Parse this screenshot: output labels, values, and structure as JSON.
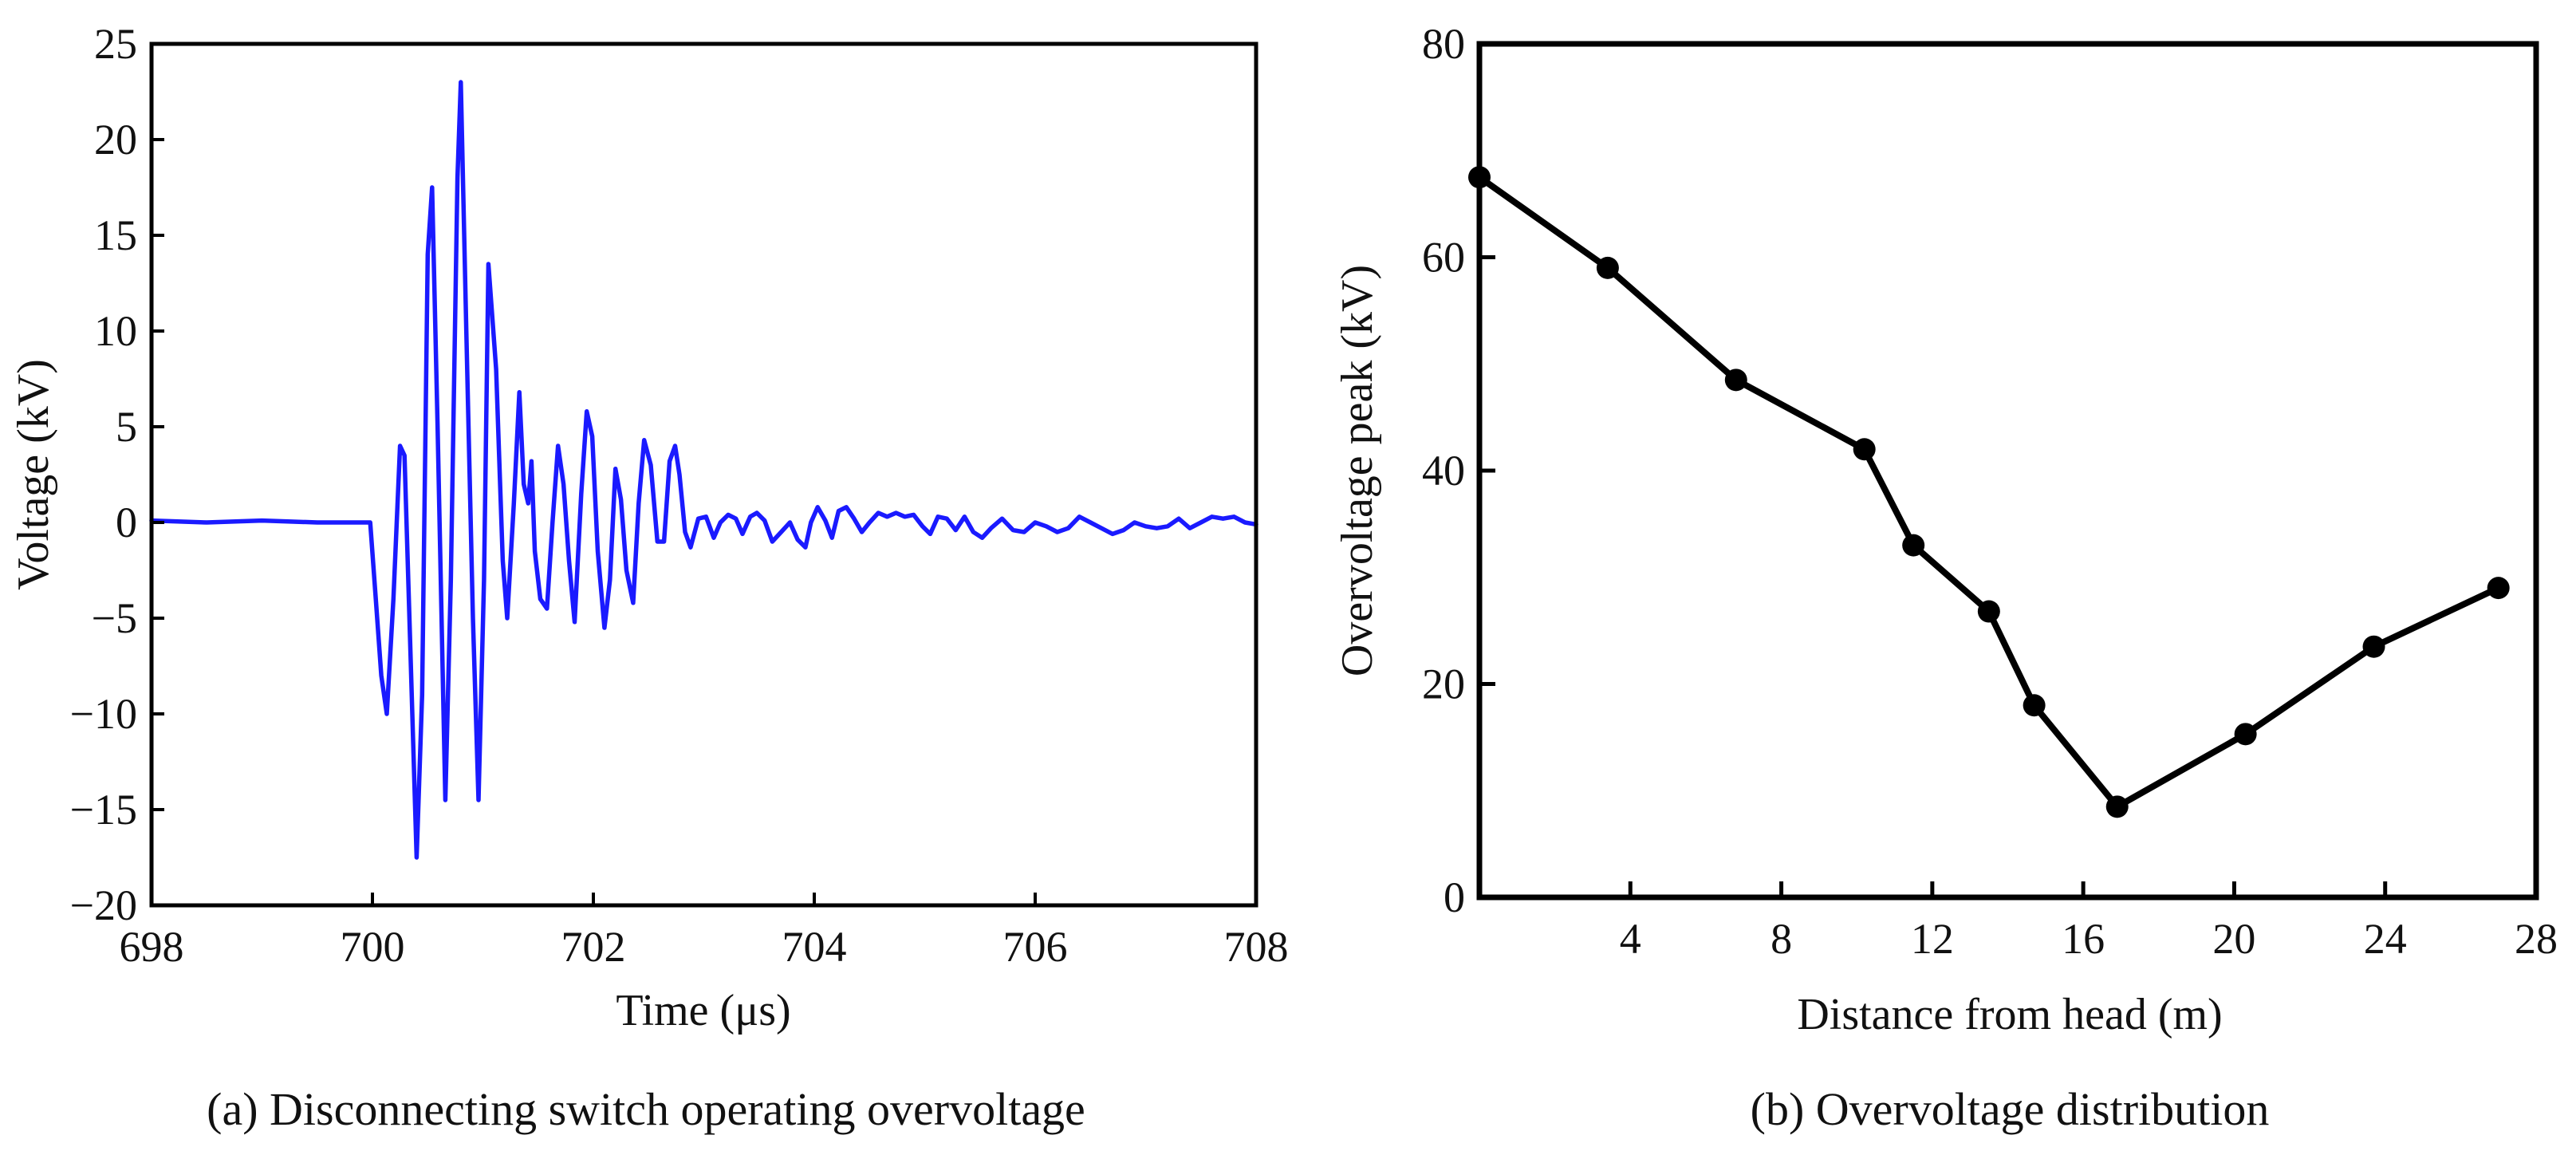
{
  "chart_data": [
    {
      "type": "line",
      "caption": "(a) Disconnecting switch operating overvoltage",
      "xlabel": "Time (μs)",
      "ylabel": "Voltage (kV)",
      "xlim": [
        698,
        708
      ],
      "ylim": [
        -20,
        25
      ],
      "x_ticks": [
        698,
        700,
        702,
        704,
        706,
        708
      ],
      "x_tick_labels": [
        "698",
        "700",
        "702",
        "704",
        "706",
        "708"
      ],
      "y_ticks": [
        -20,
        -15,
        -10,
        -5,
        0,
        5,
        10,
        15,
        20,
        25
      ],
      "y_tick_labels": [
        "−20",
        "−15",
        "−10",
        "−5",
        "0",
        "5",
        "10",
        "15",
        "20",
        "25"
      ],
      "grid": false,
      "series": [
        {
          "name": "Voltage",
          "color": "#1a1aff",
          "x": [
            698,
            698.5,
            699,
            699.5,
            699.98,
            700.03,
            700.08,
            700.13,
            700.19,
            700.25,
            700.29,
            700.34,
            700.4,
            700.45,
            700.5,
            700.54,
            700.59,
            700.66,
            700.71,
            700.77,
            700.8,
            700.85,
            700.91,
            700.96,
            701.01,
            701.05,
            701.12,
            701.18,
            701.22,
            701.28,
            701.33,
            701.37,
            701.41,
            701.44,
            701.47,
            701.52,
            701.58,
            701.63,
            701.68,
            701.73,
            701.78,
            701.83,
            701.89,
            701.94,
            701.99,
            702.04,
            702.1,
            702.15,
            702.2,
            702.25,
            702.3,
            702.36,
            702.41,
            702.46,
            702.52,
            702.58,
            702.64,
            702.69,
            702.74,
            702.78,
            702.83,
            702.88,
            702.95,
            703.02,
            703.09,
            703.15,
            703.22,
            703.29,
            703.35,
            703.42,
            703.48,
            703.55,
            703.62,
            703.7,
            703.78,
            703.85,
            703.92,
            703.97,
            704.03,
            704.1,
            704.16,
            704.22,
            704.29,
            704.36,
            704.43,
            704.5,
            704.58,
            704.66,
            704.74,
            704.82,
            704.9,
            704.98,
            705.05,
            705.12,
            705.2,
            705.28,
            705.36,
            705.44,
            705.52,
            705.6,
            705.7,
            705.8,
            705.9,
            706.0,
            706.1,
            706.2,
            706.3,
            706.4,
            706.5,
            706.6,
            706.7,
            706.8,
            706.9,
            707.0,
            707.1,
            707.2,
            707.3,
            707.4,
            707.5,
            707.6,
            707.7,
            707.8,
            707.9,
            708.0
          ],
          "y": [
            0.1,
            0.0,
            0.1,
            0.0,
            0.0,
            -4.0,
            -8.0,
            -10.0,
            -4.0,
            4.0,
            3.5,
            -6.0,
            -17.5,
            -9.0,
            14.0,
            17.5,
            5.0,
            -14.5,
            -3.0,
            18.0,
            23.0,
            10.0,
            -5.0,
            -14.5,
            -3.0,
            13.5,
            8.0,
            -2.0,
            -5.0,
            1.0,
            6.8,
            2.0,
            1.0,
            3.2,
            -1.5,
            -4.0,
            -4.5,
            0.0,
            4.0,
            2.0,
            -2.0,
            -5.2,
            1.5,
            5.8,
            4.5,
            -1.5,
            -5.5,
            -3.0,
            2.8,
            1.2,
            -2.5,
            -4.2,
            1.0,
            4.3,
            3.0,
            -1.0,
            -1.0,
            3.2,
            4.0,
            2.5,
            -0.5,
            -1.3,
            0.2,
            0.3,
            -0.8,
            0.0,
            0.4,
            0.2,
            -0.6,
            0.3,
            0.5,
            0.1,
            -1.0,
            -0.5,
            0.0,
            -0.9,
            -1.3,
            0.0,
            0.8,
            0.1,
            -0.8,
            0.6,
            0.8,
            0.2,
            -0.5,
            0.0,
            0.5,
            0.3,
            0.5,
            0.3,
            0.4,
            -0.2,
            -0.6,
            0.3,
            0.2,
            -0.4,
            0.3,
            -0.5,
            -0.8,
            -0.3,
            0.2,
            -0.4,
            -0.5,
            0.0,
            -0.2,
            -0.5,
            -0.3,
            0.3,
            0.0,
            -0.3,
            -0.6,
            -0.4,
            0.0,
            -0.2,
            -0.3,
            -0.2,
            0.2,
            -0.3,
            0.0,
            0.3,
            0.2,
            0.3,
            0.0,
            -0.1
          ]
        }
      ]
    },
    {
      "type": "line",
      "caption": "(b) Overvoltage distribution",
      "xlabel": "Distance from head (m)",
      "ylabel": "Overvoltage peak (kV)",
      "xlim": [
        0,
        28
      ],
      "ylim": [
        0,
        80
      ],
      "x_ticks": [
        4,
        8,
        12,
        16,
        20,
        24,
        28
      ],
      "x_tick_labels": [
        "4",
        "8",
        "12",
        "16",
        "20",
        "24",
        "28"
      ],
      "y_ticks": [
        0,
        20,
        40,
        60,
        80
      ],
      "y_tick_labels": [
        "0",
        "20",
        "40",
        "60",
        "80"
      ],
      "grid": false,
      "series": [
        {
          "name": "Overvoltage peak",
          "color": "#000000",
          "markers": true,
          "x": [
            0,
            3.4,
            6.8,
            10.2,
            11.5,
            13.5,
            14.7,
            16.9,
            20.3,
            23.7,
            27.0
          ],
          "y": [
            67.5,
            59.0,
            48.5,
            42.0,
            33.0,
            26.8,
            18.0,
            8.5,
            15.3,
            23.5,
            29.0
          ]
        }
      ]
    }
  ]
}
